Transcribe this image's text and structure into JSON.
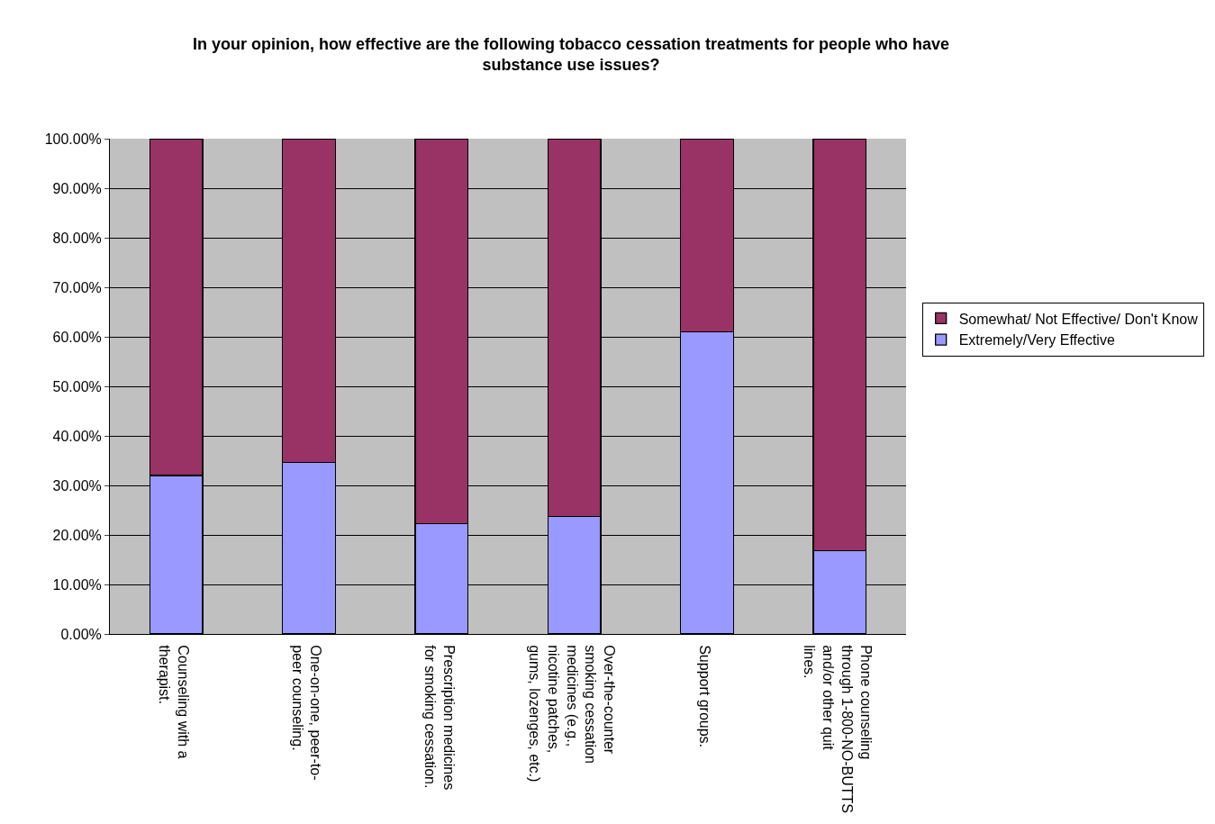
{
  "chart_data": {
    "type": "bar",
    "stacked": true,
    "title": "In your opinion, how effective are the following tobacco cessation treatments for people who have substance use issues?",
    "categories": [
      "Counseling with a therapist.",
      "One-on-one, peer-to-peer counseling.",
      "Prescription medicines for smoking cessation.",
      "Over-the-counter smoking cessation medicines (e.g., nicotine patches, gums, lozenges, etc.)",
      "Support groups.",
      "Phone counseling through 1-800-NO-BUTTS and/or other quit lines."
    ],
    "series": [
      {
        "name": "Extremely/Very Effective",
        "color": "#9999ff",
        "values": [
          32.0,
          34.7,
          22.3,
          23.7,
          61.0,
          16.8
        ]
      },
      {
        "name": "Somewhat/ Not Effective/ Don't Know",
        "color": "#993366",
        "values": [
          68.0,
          65.3,
          77.7,
          76.3,
          39.0,
          83.2
        ]
      }
    ],
    "ylim": [
      0,
      100
    ],
    "yticks": [
      {
        "value": 0,
        "label": "0.00%"
      },
      {
        "value": 10,
        "label": "10.00%"
      },
      {
        "value": 20,
        "label": "20.00%"
      },
      {
        "value": 30,
        "label": "30.00%"
      },
      {
        "value": 40,
        "label": "40.00%"
      },
      {
        "value": 50,
        "label": "50.00%"
      },
      {
        "value": 60,
        "label": "60.00%"
      },
      {
        "value": 70,
        "label": "70.00%"
      },
      {
        "value": 80,
        "label": "80.00%"
      },
      {
        "value": 90,
        "label": "90.00%"
      },
      {
        "value": 100,
        "label": "100.00%"
      }
    ],
    "grid": "y",
    "legend": "right"
  }
}
